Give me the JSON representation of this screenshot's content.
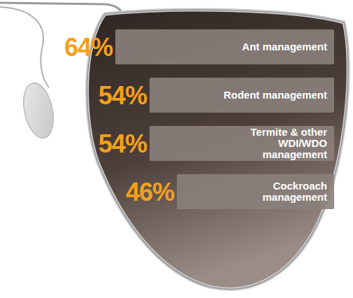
{
  "chart_data": {
    "type": "bar",
    "orientation": "horizontal",
    "categories": [
      "Ant management",
      "Rodent management",
      "Termite & other WDI/WDO management",
      "Cockroach management"
    ],
    "values": [
      64,
      54,
      54,
      46
    ],
    "value_labels": [
      "64%",
      "54%",
      "54%",
      "46%"
    ],
    "color": "#8b807b",
    "data_labels": true,
    "tick_labels": false
  }
}
